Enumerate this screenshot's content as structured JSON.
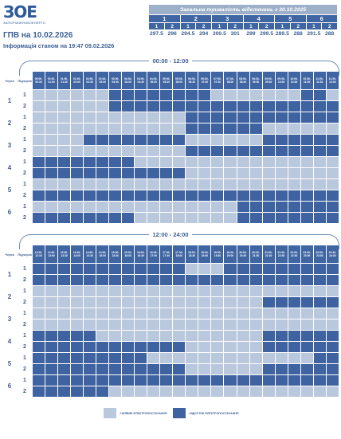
{
  "logo": {
    "mark": "ЗОЕ",
    "subtitle": "ЗАПОРІЖЖЯОБЛЕНЕРГО"
  },
  "title": "ГПВ на 10.02.2026",
  "subtitle": "Інформація станом на 19:47 09.02.2026",
  "summary": {
    "heading": "Загальна тривалість відключень з 30.10.2025",
    "queues": [
      "1",
      "2",
      "3",
      "4",
      "5",
      "6"
    ],
    "subqueues": [
      "1",
      "2",
      "1",
      "2",
      "1",
      "2",
      "1",
      "2",
      "1",
      "2",
      "1",
      "2"
    ],
    "values": [
      "297.5",
      "296",
      "294.5",
      "294",
      "300.5",
      "301",
      "299",
      "299.5",
      "289.5",
      "288",
      "291.5",
      "288"
    ]
  },
  "schedule": {
    "col_queue": "Черга",
    "col_subqueue": "Підчерга",
    "queues": [
      "1",
      "2",
      "3",
      "4",
      "5",
      "6"
    ],
    "subqueues": [
      "1",
      "2"
    ],
    "sections": [
      {
        "range": "00:00 - 12:00",
        "times": [
          "00:00-00:30",
          "00:30-01:00",
          "01:00-01:30",
          "01:30-02:00",
          "02:00-02:30",
          "02:30-03:00",
          "03:00-03:30",
          "03:30-04:00",
          "04:00-04:30",
          "04:30-05:00",
          "05:00-05:30",
          "05:30-06:00",
          "06:00-06:30",
          "06:30-07:00",
          "07:00-07:30",
          "07:30-08:00",
          "08:00-08:30",
          "08:30-09:00",
          "09:00-09:30",
          "09:30-10:00",
          "10:00-10:30",
          "10:30-11:00",
          "11:00-11:30",
          "11:30-12:00"
        ],
        "rows": [
          "000000111111110000000110",
          "000000111111111111111111",
          "000000000000111111111111",
          "000000000000111111000000",
          "000011111111000000111111",
          "000000000000111111111111",
          "111111110000000000000000",
          "111111111111000000000000",
          "000000000000000000000000",
          "111111111111111111111111",
          "000000000000000011111111",
          "111111110000000011111111"
        ]
      },
      {
        "range": "12:00 - 24:00",
        "times": [
          "12:00-12:30",
          "12:30-13:00",
          "13:00-13:30",
          "13:30-14:00",
          "14:00-14:30",
          "14:30-15:00",
          "15:00-15:30",
          "15:30-16:00",
          "16:00-16:30",
          "16:30-17:00",
          "17:00-17:30",
          "17:30-18:00",
          "18:00-18:30",
          "18:30-19:00",
          "19:00-19:30",
          "19:30-20:00",
          "20:00-20:30",
          "20:30-21:00",
          "21:00-21:30",
          "21:30-22:00",
          "22:00-22:30",
          "22:30-23:00",
          "23:00-23:30",
          "23:30-24:00"
        ],
        "rows": [
          "111111111111000111111111",
          "111111111111111111111111",
          "000000000000000000000000",
          "000000000000000000111111",
          "000000000000000000000000",
          "000000000000000000000000",
          "111110000000000000111111",
          "111111111111000000111111",
          "111111111000000000000011",
          "111111111111000000111111",
          "111111111111111111111111",
          "111111000000000000000000"
        ]
      }
    ]
  },
  "legend": {
    "on_label": "- НАЯВНЕ ЕЛЕКТРОПОСТАЧАННЯ",
    "off_label": "- ВІДСУТНЄ ЕЛЕКТРОПОСТАЧАННЯ"
  },
  "colors": {
    "on": "#b9c8dd",
    "off": "#3e63a0",
    "header": "#3f66a3",
    "text": "#3c5f94"
  }
}
